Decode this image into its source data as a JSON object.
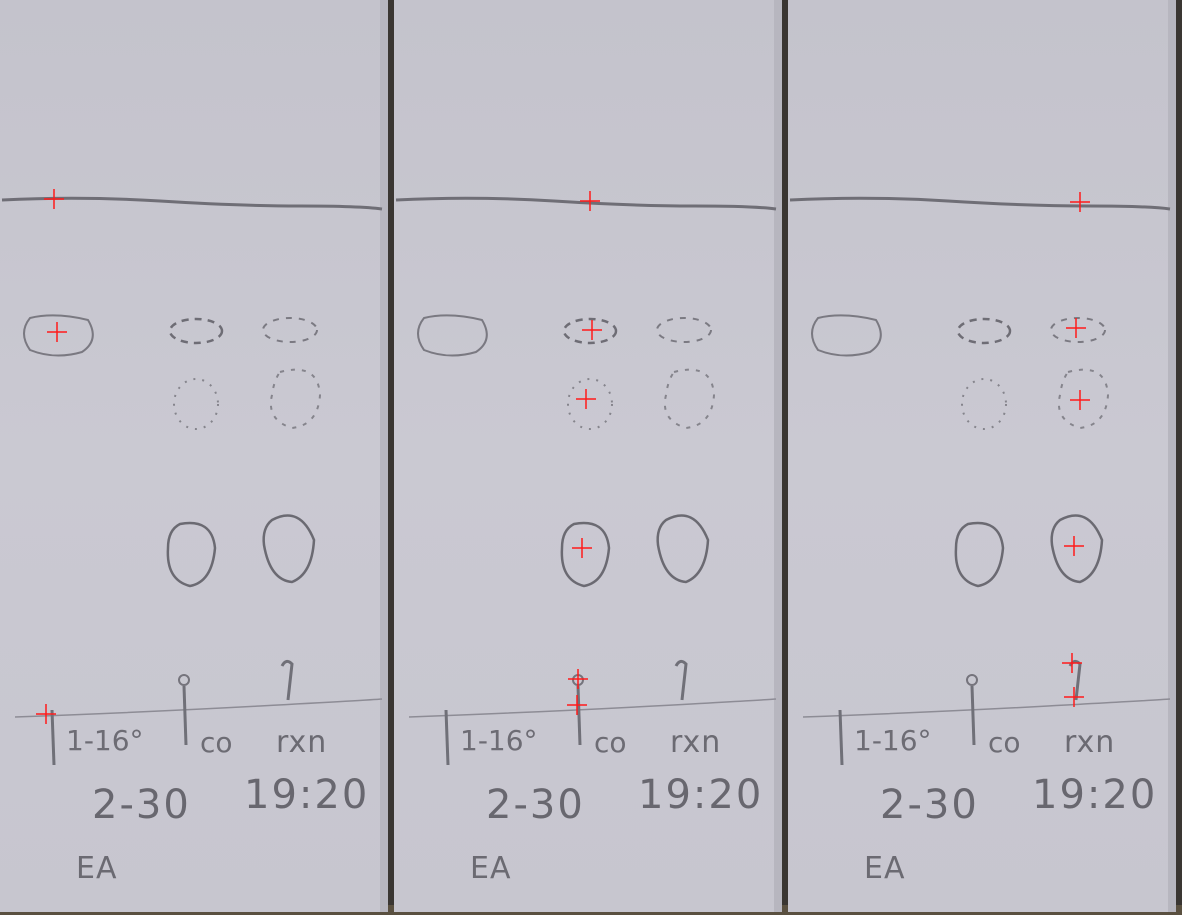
{
  "panels": [
    {
      "labels": {
        "lane1": "1-16°",
        "lane2": "co",
        "lane3": "rxn",
        "ratio": "2-30",
        "time": "19:20",
        "solvent": "EA"
      },
      "markers": [
        "solvent-front",
        "spot-lane1-top",
        "baseline-lane1"
      ]
    },
    {
      "labels": {
        "lane1": "1-16°",
        "lane2": "co",
        "lane3": "rxn",
        "ratio": "2-30",
        "time": "19:20",
        "solvent": "EA"
      },
      "markers": [
        "solvent-front",
        "spot-lane2-top",
        "spot-lane2-mid",
        "spot-lane2-low",
        "baseline-lane2-a",
        "baseline-lane2-b"
      ]
    },
    {
      "labels": {
        "lane1": "1-16°",
        "lane2": "co",
        "lane3": "rxn",
        "ratio": "2-30",
        "time": "19:20",
        "solvent": "EA"
      },
      "markers": [
        "solvent-front",
        "spot-lane3-top",
        "spot-lane3-mid",
        "spot-lane3-low",
        "baseline-lane3-a",
        "baseline-lane3-b"
      ]
    }
  ],
  "colors": {
    "plate": "#c9c8d1",
    "pencil": "#6b6a72",
    "marker": "#ff1a1a",
    "background": "#3a3632"
  }
}
